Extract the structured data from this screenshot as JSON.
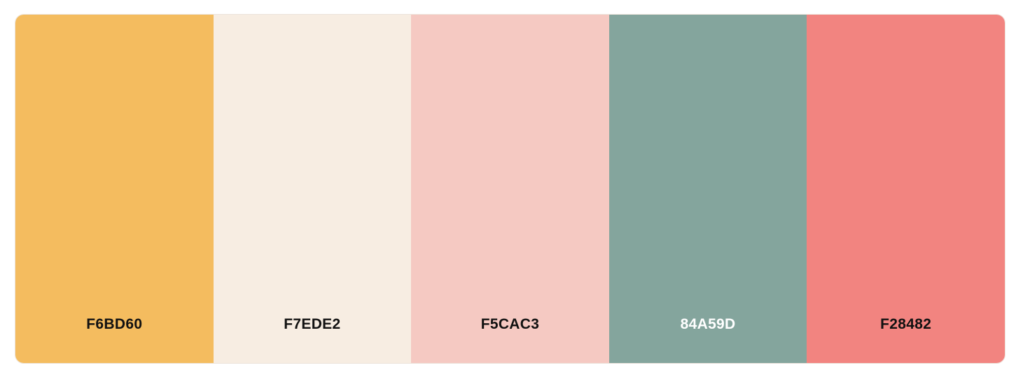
{
  "palette": {
    "swatches": [
      {
        "hex_label": "F6BD60",
        "color": "#F4BC5F",
        "text_color": "#111111"
      },
      {
        "hex_label": "F7EDE2",
        "color": "#F7EDE2",
        "text_color": "#111111"
      },
      {
        "hex_label": "F5CAC3",
        "color": "#F5C9C2",
        "text_color": "#111111"
      },
      {
        "hex_label": "84A59D",
        "color": "#84A59D",
        "text_color": "#FFFFFF"
      },
      {
        "hex_label": "F28482",
        "color": "#F28480",
        "text_color": "#111111"
      }
    ]
  }
}
